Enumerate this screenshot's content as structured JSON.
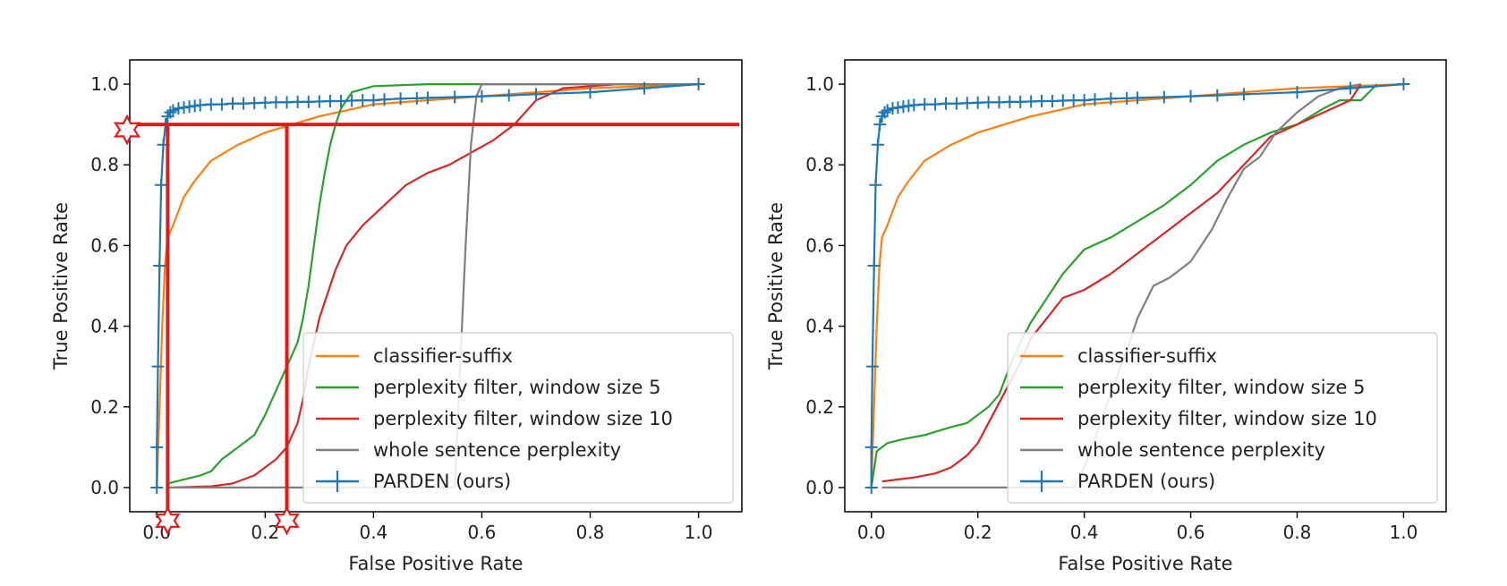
{
  "chart_data": [
    {
      "type": "line",
      "xlabel": "False Positive Rate",
      "ylabel": "True Positive Rate",
      "xlim": [
        -0.05,
        1.08
      ],
      "ylim": [
        -0.06,
        1.06
      ],
      "xticks": [
        "0.0",
        "0.2",
        "0.4",
        "0.6",
        "0.8",
        "1.0"
      ],
      "yticks": [
        "0.0",
        "0.2",
        "0.4",
        "0.6",
        "0.8",
        "1.0"
      ],
      "xtick_values": [
        0,
        0.2,
        0.4,
        0.6,
        0.8,
        1.0
      ],
      "ytick_values": [
        0,
        0.2,
        0.4,
        0.6,
        0.8,
        1.0
      ],
      "grid": false,
      "legend_position": "lower-right",
      "series": [
        {
          "name": "classifier-suffix",
          "color": "#ff7f0e",
          "x": [
            0.0,
            0.005,
            0.01,
            0.015,
            0.02,
            0.03,
            0.05,
            0.07,
            0.1,
            0.15,
            0.2,
            0.25,
            0.3,
            0.35,
            0.4,
            0.5,
            0.6,
            0.7,
            0.8,
            1.0
          ],
          "y": [
            0.0,
            0.2,
            0.4,
            0.55,
            0.62,
            0.65,
            0.72,
            0.76,
            0.81,
            0.85,
            0.88,
            0.9,
            0.92,
            0.935,
            0.95,
            0.96,
            0.97,
            0.98,
            0.99,
            1.0
          ]
        },
        {
          "name": "perplexity filter, window size 5",
          "color": "#2ca02c",
          "x": [
            0.02,
            0.05,
            0.08,
            0.1,
            0.12,
            0.15,
            0.18,
            0.2,
            0.22,
            0.24,
            0.26,
            0.27,
            0.28,
            0.29,
            0.3,
            0.31,
            0.32,
            0.33,
            0.34,
            0.36,
            0.4,
            0.5,
            0.6,
            1.0
          ],
          "y": [
            0.01,
            0.02,
            0.03,
            0.04,
            0.07,
            0.1,
            0.13,
            0.18,
            0.24,
            0.3,
            0.36,
            0.42,
            0.5,
            0.6,
            0.7,
            0.78,
            0.85,
            0.9,
            0.94,
            0.98,
            0.995,
            1.0,
            1.0,
            1.0
          ]
        },
        {
          "name": "perplexity filter, window size 10",
          "color": "#d62728",
          "x": [
            0.03,
            0.1,
            0.14,
            0.18,
            0.2,
            0.22,
            0.24,
            0.26,
            0.27,
            0.28,
            0.3,
            0.33,
            0.35,
            0.38,
            0.42,
            0.46,
            0.5,
            0.54,
            0.58,
            0.62,
            0.66,
            0.68,
            0.7,
            0.75,
            0.85,
            1.0
          ],
          "y": [
            0.0,
            0.003,
            0.01,
            0.03,
            0.05,
            0.07,
            0.1,
            0.16,
            0.22,
            0.3,
            0.42,
            0.54,
            0.6,
            0.65,
            0.7,
            0.75,
            0.78,
            0.8,
            0.83,
            0.86,
            0.9,
            0.93,
            0.96,
            0.99,
            1.0,
            1.0
          ]
        },
        {
          "name": "whole sentence perplexity",
          "color": "#7f7f7f",
          "x": [
            0.02,
            0.2,
            0.4,
            0.55,
            0.56,
            0.57,
            0.58,
            0.59,
            0.6,
            0.7,
            0.8,
            1.0
          ],
          "y": [
            0.0,
            0.0,
            0.0,
            0.0,
            0.3,
            0.6,
            0.85,
            0.97,
            1.0,
            1.0,
            1.0,
            1.0
          ]
        },
        {
          "name": "PARDEN (ours)",
          "color": "#1f77b4",
          "marker": "+",
          "x": [
            0.0,
            0.0,
            0.002,
            0.005,
            0.008,
            0.012,
            0.016,
            0.02,
            0.025,
            0.03,
            0.04,
            0.05,
            0.06,
            0.07,
            0.08,
            0.1,
            0.12,
            0.14,
            0.16,
            0.18,
            0.2,
            0.22,
            0.24,
            0.26,
            0.28,
            0.3,
            0.32,
            0.34,
            0.36,
            0.38,
            0.4,
            0.42,
            0.45,
            0.48,
            0.5,
            0.55,
            0.6,
            0.65,
            0.7,
            0.8,
            0.9,
            1.0
          ],
          "y": [
            0.0,
            0.1,
            0.3,
            0.55,
            0.75,
            0.85,
            0.9,
            0.92,
            0.93,
            0.935,
            0.94,
            0.942,
            0.944,
            0.946,
            0.948,
            0.95,
            0.95,
            0.952,
            0.952,
            0.953,
            0.954,
            0.955,
            0.955,
            0.956,
            0.956,
            0.957,
            0.958,
            0.958,
            0.959,
            0.96,
            0.96,
            0.962,
            0.964,
            0.965,
            0.966,
            0.968,
            0.97,
            0.972,
            0.975,
            0.98,
            0.99,
            1.0
          ]
        }
      ],
      "annotations": {
        "threshold_tpr": 0.9,
        "vertical_marker_fprs": [
          0.02,
          0.24
        ]
      }
    },
    {
      "type": "line",
      "xlabel": "False Positive Rate",
      "ylabel": "True Positive Rate",
      "xlim": [
        -0.05,
        1.08
      ],
      "ylim": [
        -0.06,
        1.06
      ],
      "xticks": [
        "0.0",
        "0.2",
        "0.4",
        "0.6",
        "0.8",
        "1.0"
      ],
      "yticks": [
        "0.0",
        "0.2",
        "0.4",
        "0.6",
        "0.8",
        "1.0"
      ],
      "xtick_values": [
        0,
        0.2,
        0.4,
        0.6,
        0.8,
        1.0
      ],
      "ytick_values": [
        0,
        0.2,
        0.4,
        0.6,
        0.8,
        1.0
      ],
      "grid": false,
      "legend_position": "lower-right",
      "series": [
        {
          "name": "classifier-suffix",
          "color": "#ff7f0e",
          "x": [
            0.0,
            0.005,
            0.01,
            0.015,
            0.02,
            0.03,
            0.05,
            0.07,
            0.1,
            0.15,
            0.2,
            0.25,
            0.3,
            0.35,
            0.4,
            0.5,
            0.6,
            0.7,
            0.8,
            1.0
          ],
          "y": [
            0.0,
            0.2,
            0.4,
            0.55,
            0.62,
            0.65,
            0.72,
            0.76,
            0.81,
            0.85,
            0.88,
            0.9,
            0.92,
            0.935,
            0.95,
            0.96,
            0.97,
            0.98,
            0.99,
            1.0
          ]
        },
        {
          "name": "perplexity filter, window size 5",
          "color": "#2ca02c",
          "x": [
            0.0,
            0.01,
            0.03,
            0.06,
            0.1,
            0.15,
            0.18,
            0.2,
            0.22,
            0.24,
            0.26,
            0.28,
            0.3,
            0.33,
            0.36,
            0.4,
            0.45,
            0.5,
            0.55,
            0.6,
            0.65,
            0.7,
            0.75,
            0.8,
            0.85,
            0.88,
            0.92,
            0.95
          ],
          "y": [
            0.0,
            0.09,
            0.11,
            0.12,
            0.13,
            0.15,
            0.16,
            0.18,
            0.2,
            0.23,
            0.3,
            0.36,
            0.41,
            0.47,
            0.53,
            0.59,
            0.62,
            0.66,
            0.7,
            0.75,
            0.81,
            0.85,
            0.88,
            0.9,
            0.94,
            0.96,
            0.96,
            1.0
          ]
        },
        {
          "name": "perplexity filter, window size 10",
          "color": "#d62728",
          "x": [
            0.02,
            0.05,
            0.08,
            0.12,
            0.15,
            0.18,
            0.2,
            0.22,
            0.24,
            0.26,
            0.28,
            0.3,
            0.33,
            0.36,
            0.4,
            0.45,
            0.5,
            0.55,
            0.6,
            0.65,
            0.7,
            0.75,
            0.8,
            0.85,
            0.9,
            0.92
          ],
          "y": [
            0.015,
            0.02,
            0.025,
            0.035,
            0.05,
            0.08,
            0.11,
            0.16,
            0.21,
            0.26,
            0.31,
            0.37,
            0.42,
            0.47,
            0.49,
            0.53,
            0.58,
            0.63,
            0.68,
            0.73,
            0.8,
            0.87,
            0.9,
            0.93,
            0.96,
            1.0
          ]
        },
        {
          "name": "whole sentence perplexity",
          "color": "#7f7f7f",
          "x": [
            0.02,
            0.2,
            0.38,
            0.4,
            0.42,
            0.44,
            0.46,
            0.48,
            0.5,
            0.53,
            0.56,
            0.6,
            0.64,
            0.67,
            0.7,
            0.73,
            0.76,
            0.8,
            0.84,
            0.88,
            0.92
          ],
          "y": [
            0.0,
            0.0,
            0.0,
            0.05,
            0.12,
            0.2,
            0.27,
            0.34,
            0.42,
            0.5,
            0.52,
            0.56,
            0.64,
            0.72,
            0.79,
            0.82,
            0.88,
            0.93,
            0.97,
            0.99,
            1.0
          ]
        },
        {
          "name": "PARDEN (ours)",
          "color": "#1f77b4",
          "marker": "+",
          "x": [
            0.0,
            0.0,
            0.002,
            0.005,
            0.008,
            0.012,
            0.016,
            0.02,
            0.025,
            0.03,
            0.04,
            0.05,
            0.06,
            0.07,
            0.08,
            0.1,
            0.12,
            0.14,
            0.16,
            0.18,
            0.2,
            0.22,
            0.24,
            0.26,
            0.28,
            0.3,
            0.32,
            0.34,
            0.36,
            0.38,
            0.4,
            0.42,
            0.45,
            0.48,
            0.5,
            0.55,
            0.6,
            0.65,
            0.7,
            0.8,
            0.9,
            1.0
          ],
          "y": [
            0.0,
            0.1,
            0.3,
            0.55,
            0.75,
            0.85,
            0.9,
            0.92,
            0.93,
            0.935,
            0.94,
            0.942,
            0.944,
            0.946,
            0.948,
            0.95,
            0.95,
            0.952,
            0.952,
            0.953,
            0.954,
            0.955,
            0.955,
            0.956,
            0.956,
            0.957,
            0.958,
            0.958,
            0.959,
            0.96,
            0.96,
            0.962,
            0.964,
            0.965,
            0.966,
            0.968,
            0.97,
            0.972,
            0.975,
            0.98,
            0.99,
            1.0
          ]
        }
      ]
    }
  ]
}
